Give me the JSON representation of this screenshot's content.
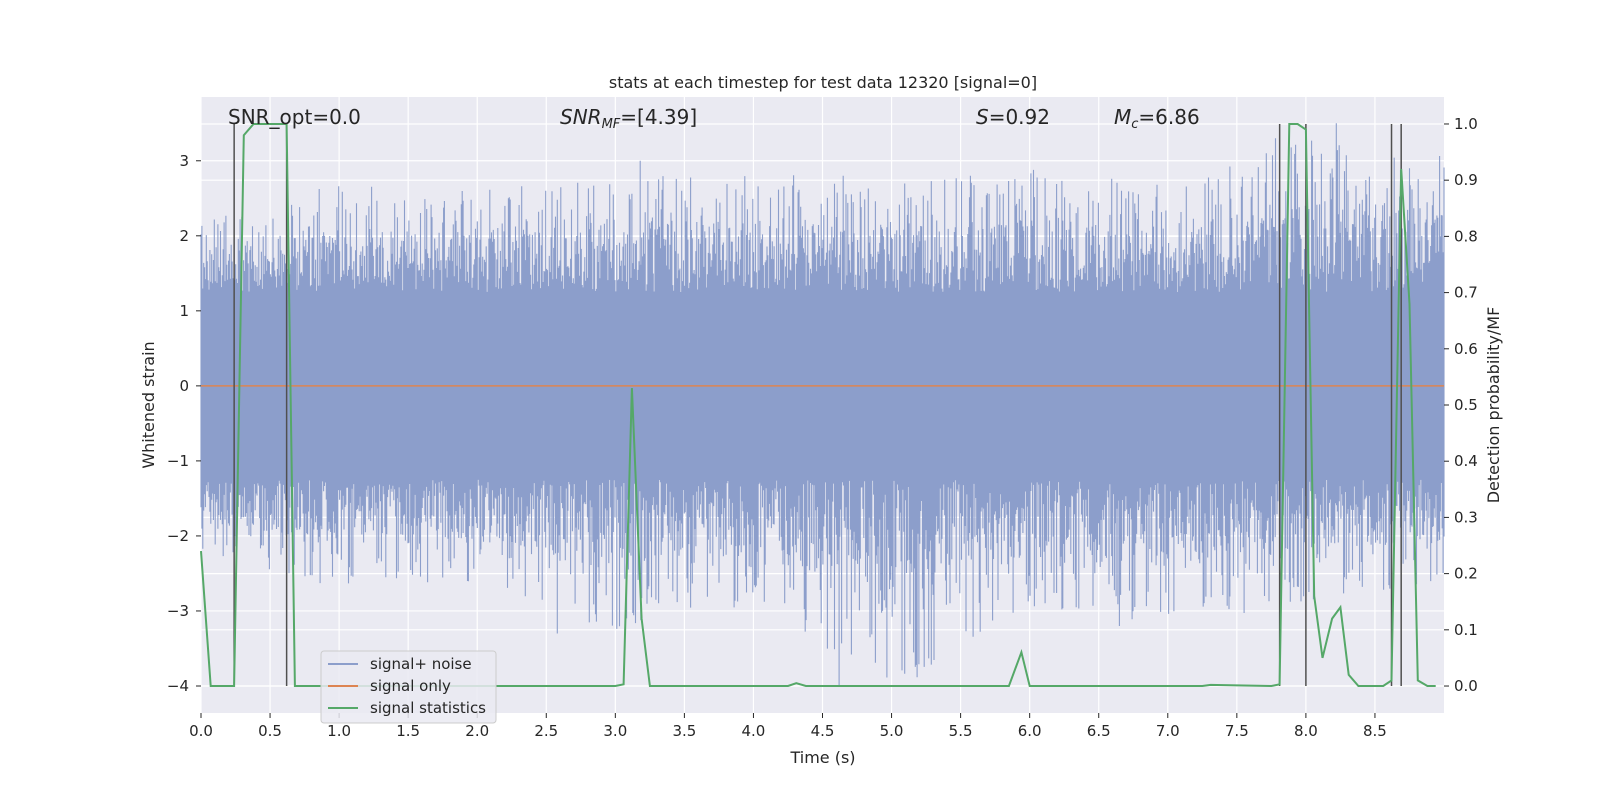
{
  "chart_data": {
    "type": "line",
    "title": "stats at each timestep for test data 12320 [signal=0]",
    "xlabel": "Time (s)",
    "ylabel_left": "Whitened strain",
    "ylabel_right": "Detection probability/MF",
    "xlim": [
      0.0,
      9.0
    ],
    "ylim_left": [
      -4.36,
      3.85
    ],
    "ylim_right": [
      -0.048,
      1.048
    ],
    "xticks": [
      "0.0",
      "0.5",
      "1.0",
      "1.5",
      "2.0",
      "2.5",
      "3.0",
      "3.5",
      "4.0",
      "4.5",
      "5.0",
      "5.5",
      "6.0",
      "6.5",
      "7.0",
      "7.5",
      "8.0",
      "8.5"
    ],
    "xtick_values": [
      0.0,
      0.5,
      1.0,
      1.5,
      2.0,
      2.5,
      3.0,
      3.5,
      4.0,
      4.5,
      5.0,
      5.5,
      6.0,
      6.5,
      7.0,
      7.5,
      8.0,
      8.5
    ],
    "yticks_left": [
      "3",
      "2",
      "1",
      "0",
      "−1",
      "−2",
      "−3",
      "−4"
    ],
    "ytick_values_left": [
      3,
      2,
      1,
      0,
      -1,
      -2,
      -3,
      -4
    ],
    "yticks_right": [
      "1.0",
      "0.9",
      "0.8",
      "0.7",
      "0.6",
      "0.5",
      "0.4",
      "0.3",
      "0.2",
      "0.1",
      "0.0"
    ],
    "ytick_values_right": [
      1.0,
      0.9,
      0.8,
      0.7,
      0.6,
      0.5,
      0.4,
      0.3,
      0.2,
      0.1,
      0.0
    ],
    "annotations": {
      "snr_opt": "SNR_opt=0.0",
      "snr_mf_label": "SNR",
      "snr_mf_sub": "MF",
      "snr_mf_value": "=[4.39]",
      "s_label": "S",
      "s_value": "=0.92",
      "mc_label": "M",
      "mc_sub": "c",
      "mc_value": "=6.86"
    },
    "legend": {
      "placement": "lower left",
      "entries": [
        "signal+ noise",
        "signal only",
        "signal statistics"
      ]
    },
    "colors": {
      "noise": "#8c9ecb",
      "signal_only": "#dd8452",
      "statistics": "#55a868",
      "vlines": "#505050",
      "background": "#eaeaf2",
      "grid": "#ffffff"
    },
    "series": [
      {
        "name": "signal+ noise",
        "axis": "left",
        "style": "noise",
        "envelope": {
          "x": [
            0.0,
            1.0,
            2.0,
            3.0,
            4.0,
            5.0,
            6.0,
            7.0,
            8.0,
            9.0
          ],
          "upper": [
            2.2,
            2.7,
            2.6,
            2.8,
            2.9,
            2.7,
            2.9,
            2.7,
            3.3,
            3.1
          ],
          "lower": [
            -2.2,
            -2.7,
            -2.6,
            -3.3,
            -2.9,
            -4.1,
            -3.0,
            -3.2,
            -2.9,
            -2.6
          ]
        },
        "spikes": [
          {
            "x": 2.58,
            "y": -3.3
          },
          {
            "x": 3.18,
            "y": 3.0
          },
          {
            "x": 4.62,
            "y": -4.0
          },
          {
            "x": 4.65,
            "y": 2.8
          },
          {
            "x": 6.65,
            "y": -3.2
          },
          {
            "x": 7.78,
            "y": 3.3
          },
          {
            "x": 8.22,
            "y": 3.5
          },
          {
            "x": 8.75,
            "y": 2.9
          }
        ]
      },
      {
        "name": "signal only",
        "axis": "left",
        "x": [
          0.0,
          9.0
        ],
        "y": [
          0.0,
          0.0
        ]
      },
      {
        "name": "signal statistics",
        "axis": "right",
        "x": [
          0.0,
          0.07,
          0.24,
          0.31,
          0.38,
          0.62,
          0.68,
          0.75,
          3.0,
          3.06,
          3.12,
          3.19,
          3.25,
          3.32,
          4.25,
          4.31,
          4.38,
          5.85,
          5.94,
          6.0,
          6.06,
          7.25,
          7.31,
          7.75,
          7.81,
          7.88,
          7.94,
          8.0,
          8.06,
          8.12,
          8.19,
          8.25,
          8.31,
          8.38,
          8.44,
          8.56,
          8.62,
          8.69,
          8.75,
          8.81,
          8.88,
          8.94
        ],
        "y": [
          0.24,
          0.0,
          0.0,
          0.98,
          1.0,
          1.0,
          0.0,
          0.0,
          0.0,
          0.003,
          0.53,
          0.12,
          0.0,
          0.0,
          0.0,
          0.005,
          0.0,
          0.0,
          0.06,
          0.0,
          0.0,
          0.0,
          0.002,
          0.0,
          0.003,
          1.0,
          1.0,
          0.99,
          0.16,
          0.05,
          0.12,
          0.14,
          0.02,
          0.0,
          0.0,
          0.0,
          0.01,
          0.92,
          0.68,
          0.01,
          0.0,
          0.0
        ]
      }
    ],
    "vertical_lines_x": [
      0.24,
      0.62,
      7.81,
      8.0,
      8.62,
      8.69
    ]
  }
}
